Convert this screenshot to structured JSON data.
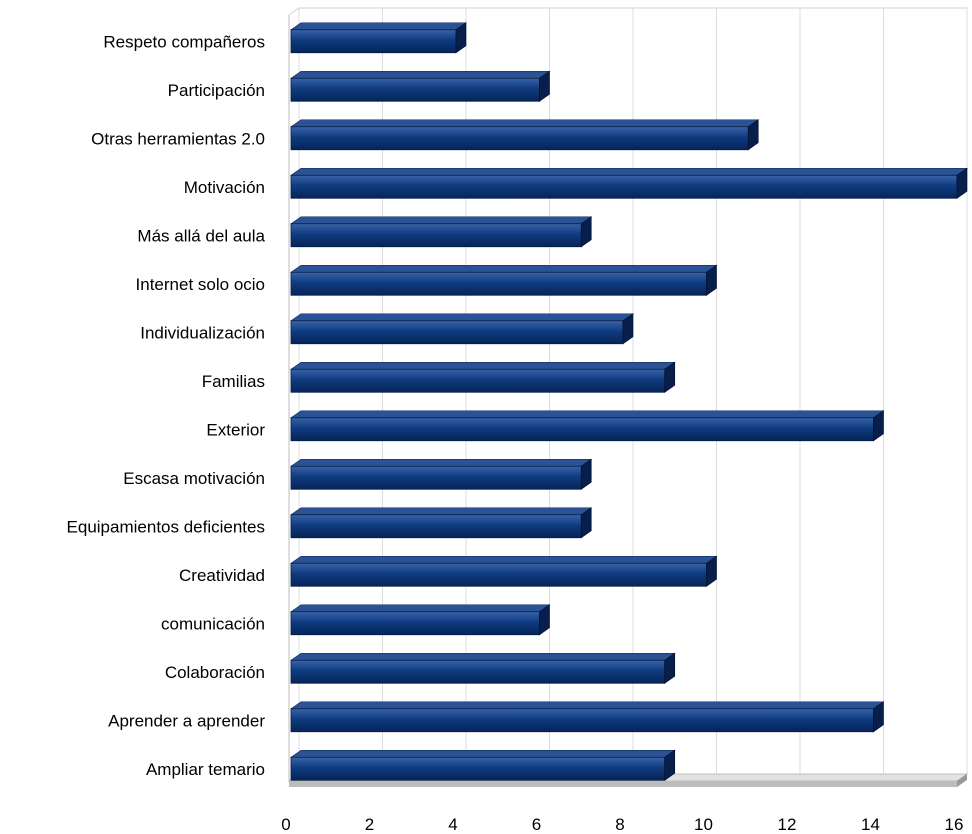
{
  "chart_data": {
    "type": "bar",
    "orientation": "horizontal",
    "style": "3d",
    "categories": [
      "Respeto compañeros",
      "Participación",
      "Otras herramientas 2.0",
      "Motivación",
      "Más allá del aula",
      "Internet solo ocio",
      "Individualización",
      "Familias",
      "Exterior",
      "Escasa motivación",
      "Equipamientos deficientes",
      "Creatividad",
      "comunicación",
      "Colaboración",
      "Aprender a aprender",
      "Ampliar temario"
    ],
    "values": [
      4,
      6,
      11,
      16,
      7,
      10,
      8,
      9,
      14,
      7,
      7,
      10,
      6,
      9,
      14,
      9
    ],
    "xlim": [
      0,
      16
    ],
    "xticks": [
      "0",
      "2",
      "4",
      "6",
      "8",
      "10",
      "12",
      "14",
      "16"
    ],
    "grid": true,
    "legend": "none",
    "bar_color": "#0d3a7d"
  }
}
